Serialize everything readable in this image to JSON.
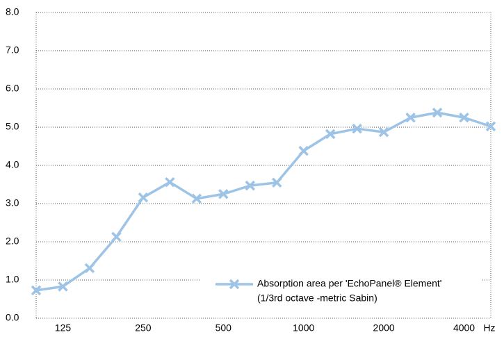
{
  "chart_data": {
    "type": "line",
    "categories": [
      null,
      "125",
      null,
      null,
      "250",
      null,
      null,
      "500",
      null,
      null,
      "1000",
      null,
      null,
      "2000",
      null,
      null,
      "4000",
      null
    ],
    "x_label": "Hz",
    "series": [
      {
        "name": "Absorption area per 'EchoPanel® Element'",
        "color": "#9dc3e6",
        "values": [
          0.73,
          0.83,
          1.31,
          2.13,
          3.16,
          3.56,
          3.13,
          3.25,
          3.47,
          3.55,
          4.38,
          4.82,
          4.96,
          4.87,
          5.25,
          5.38,
          5.25,
          5.02
        ]
      }
    ],
    "legend_note": "(1/3rd octave -metric Sabin)",
    "legend": "lower right",
    "ylim": [
      0,
      8
    ],
    "yticks": [
      {
        "value": 0,
        "label": "0.0"
      },
      {
        "value": 1,
        "label": "1.0"
      },
      {
        "value": 2,
        "label": "2.0"
      },
      {
        "value": 3,
        "label": "3.0"
      },
      {
        "value": 4,
        "label": "4.0"
      },
      {
        "value": 5,
        "label": "5.0"
      },
      {
        "value": 6,
        "label": "6.0"
      },
      {
        "value": 7,
        "label": "7.0"
      },
      {
        "value": 8,
        "label": "8.0"
      }
    ],
    "grid": true
  }
}
